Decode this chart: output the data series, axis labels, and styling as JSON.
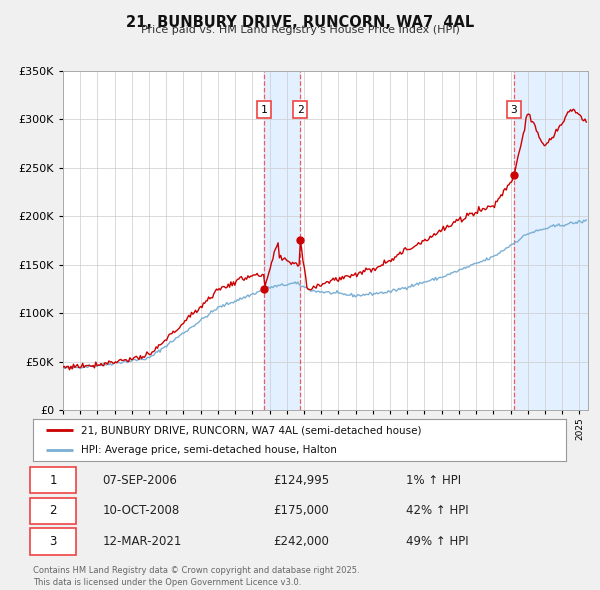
{
  "title": "21, BUNBURY DRIVE, RUNCORN, WA7  4AL",
  "subtitle": "Price paid vs. HM Land Registry's House Price Index (HPI)",
  "legend_property": "21, BUNBURY DRIVE, RUNCORN, WA7 4AL (semi-detached house)",
  "legend_hpi": "HPI: Average price, semi-detached house, Halton",
  "footnote": "Contains HM Land Registry data © Crown copyright and database right 2025.\nThis data is licensed under the Open Government Licence v3.0.",
  "transactions": [
    {
      "num": 1,
      "date": "07-SEP-2006",
      "price": 124995,
      "hpi_pct": "1%"
    },
    {
      "num": 2,
      "date": "10-OCT-2008",
      "price": 175000,
      "hpi_pct": "42%"
    },
    {
      "num": 3,
      "date": "12-MAR-2021",
      "price": 242000,
      "hpi_pct": "49%"
    }
  ],
  "transaction_dates_decimal": [
    2006.686,
    2008.78,
    2021.194
  ],
  "property_color": "#cc0000",
  "hpi_color": "#7bafd4",
  "vline_color": "#ee4444",
  "shade_color": "#ddeeff",
  "ylim": [
    0,
    350000
  ],
  "ytick_step": 50000,
  "xlim_start": 1995.0,
  "xlim_end": 2025.5,
  "background_color": "#f0f0f0",
  "plot_bg_color": "#ffffff",
  "grid_color": "#cccccc"
}
